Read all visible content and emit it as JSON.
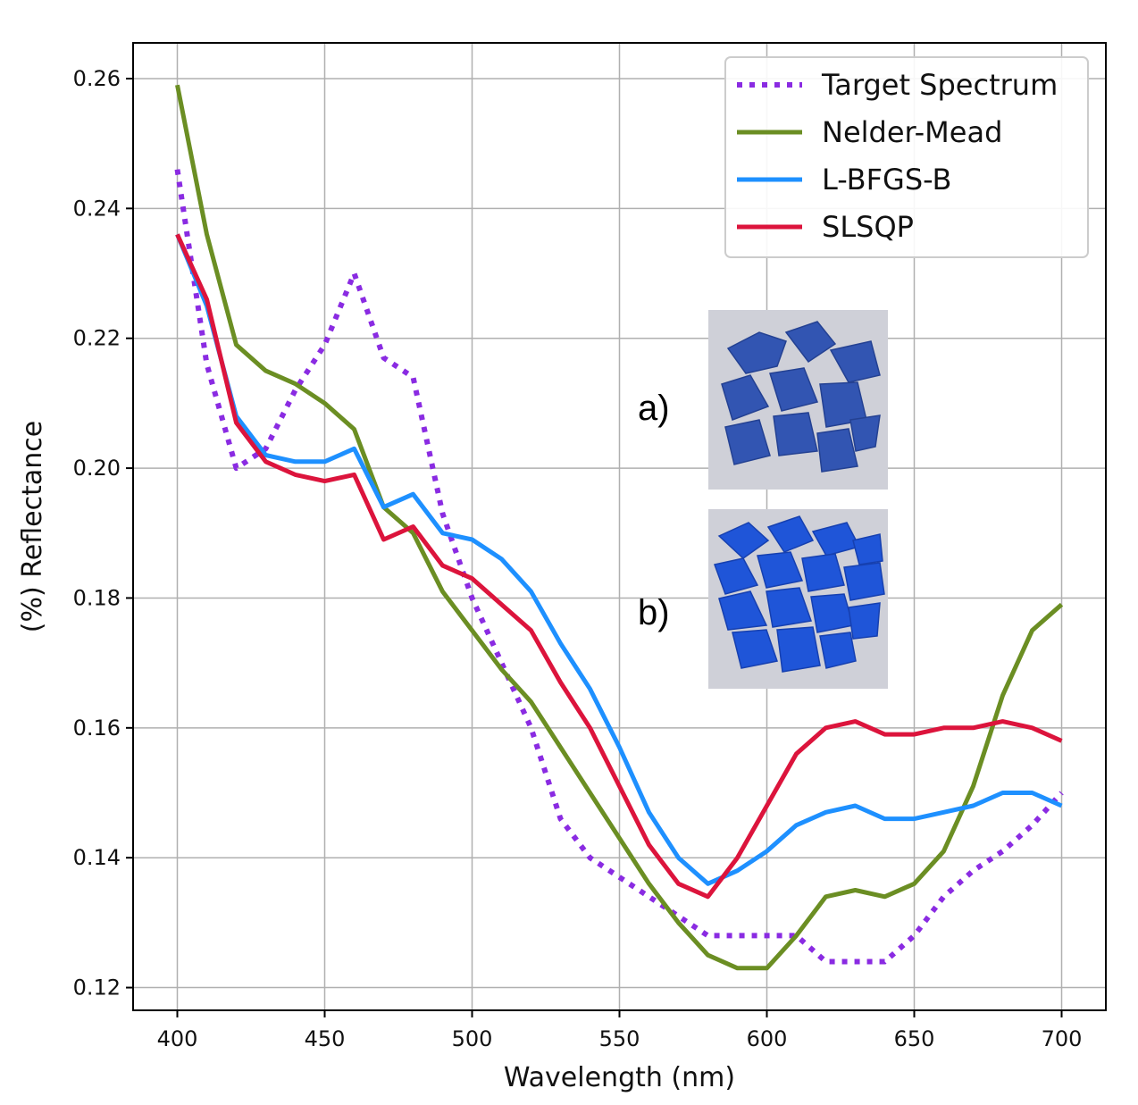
{
  "chart_data": {
    "type": "line",
    "xlabel": "Wavelength (nm)",
    "ylabel": "(%) Reflectance",
    "xlim": [
      385,
      715
    ],
    "ylim": [
      0.1165,
      0.2655
    ],
    "xticks": [
      400,
      450,
      500,
      550,
      600,
      650,
      700
    ],
    "yticks": [
      0.12,
      0.14,
      0.16,
      0.18,
      0.2,
      0.22,
      0.24,
      0.26
    ],
    "ytick_labels": [
      "0.12",
      "0.14",
      "0.16",
      "0.18",
      "0.20",
      "0.22",
      "0.24",
      "0.26"
    ],
    "grid": true,
    "legend_position": "top-right",
    "x": [
      400,
      410,
      420,
      430,
      440,
      450,
      460,
      470,
      480,
      490,
      500,
      510,
      520,
      530,
      540,
      550,
      560,
      570,
      580,
      590,
      600,
      610,
      620,
      630,
      640,
      650,
      660,
      670,
      680,
      690,
      700
    ],
    "series": [
      {
        "name": "Target Spectrum",
        "color": "#8a2be2",
        "style": "dotted",
        "values": [
          0.246,
          0.216,
          0.2,
          0.203,
          0.212,
          0.219,
          0.23,
          0.217,
          0.214,
          0.193,
          0.18,
          0.17,
          0.16,
          0.146,
          0.14,
          0.137,
          0.134,
          0.131,
          0.128,
          0.128,
          0.128,
          0.128,
          0.124,
          0.124,
          0.124,
          0.128,
          0.134,
          0.138,
          0.141,
          0.145,
          0.15
        ]
      },
      {
        "name": "Nelder-Mead",
        "color": "#6b8e23",
        "style": "solid",
        "values": [
          0.259,
          0.236,
          0.219,
          0.215,
          0.213,
          0.21,
          0.206,
          0.194,
          0.19,
          0.181,
          0.175,
          0.169,
          0.164,
          0.157,
          0.15,
          0.143,
          0.136,
          0.13,
          0.125,
          0.123,
          0.123,
          0.128,
          0.134,
          0.135,
          0.134,
          0.136,
          0.141,
          0.151,
          0.165,
          0.175,
          0.179
        ]
      },
      {
        "name": "L-BFGS-B",
        "color": "#1e90ff",
        "style": "solid",
        "values": [
          0.236,
          0.225,
          0.208,
          0.202,
          0.201,
          0.201,
          0.203,
          0.194,
          0.196,
          0.19,
          0.189,
          0.186,
          0.181,
          0.173,
          0.166,
          0.157,
          0.147,
          0.14,
          0.136,
          0.138,
          0.141,
          0.145,
          0.147,
          0.148,
          0.146,
          0.146,
          0.147,
          0.148,
          0.15,
          0.15,
          0.148
        ]
      },
      {
        "name": "SLSQP",
        "color": "#dc143c",
        "style": "solid",
        "values": [
          0.236,
          0.226,
          0.207,
          0.201,
          0.199,
          0.198,
          0.199,
          0.189,
          0.191,
          0.185,
          0.183,
          0.179,
          0.175,
          0.167,
          0.16,
          0.151,
          0.142,
          0.136,
          0.134,
          0.14,
          0.148,
          0.156,
          0.16,
          0.161,
          0.159,
          0.159,
          0.16,
          0.16,
          0.161,
          0.16,
          0.158
        ]
      }
    ],
    "annotations": [
      "a)",
      "b)"
    ]
  }
}
